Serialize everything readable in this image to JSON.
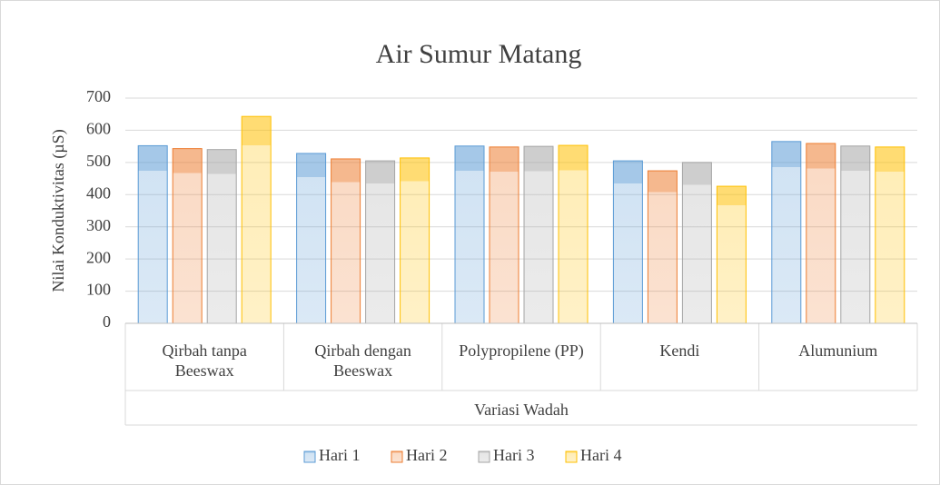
{
  "chart_data": {
    "type": "bar",
    "title": "Air Sumur Matang",
    "y_label": "Nilai Konduktivitas (µS)",
    "x_label": "Variasi Wadah",
    "categories": [
      "Qirbah tanpa Beeswax",
      "Qirbah dengan Beeswax",
      "Polypropilene (PP)",
      "Kendi",
      "Alumunium"
    ],
    "series": [
      {
        "name": "Hari 1",
        "color": "#5b9bd5",
        "values": [
          552,
          528,
          551,
          505,
          565
        ]
      },
      {
        "name": "Hari 2",
        "color": "#ed7d31",
        "values": [
          543,
          511,
          548,
          474,
          559
        ]
      },
      {
        "name": "Hari 3",
        "color": "#a5a5a5",
        "values": [
          540,
          505,
          550,
          500,
          551
        ]
      },
      {
        "name": "Hari 4",
        "color": "#ffc000",
        "values": [
          643,
          514,
          553,
          426,
          548
        ]
      }
    ],
    "ylim": [
      0,
      700
    ],
    "yticks": [
      0,
      100,
      200,
      300,
      400,
      500,
      600,
      700
    ],
    "grid": true,
    "legend": "bottom"
  }
}
